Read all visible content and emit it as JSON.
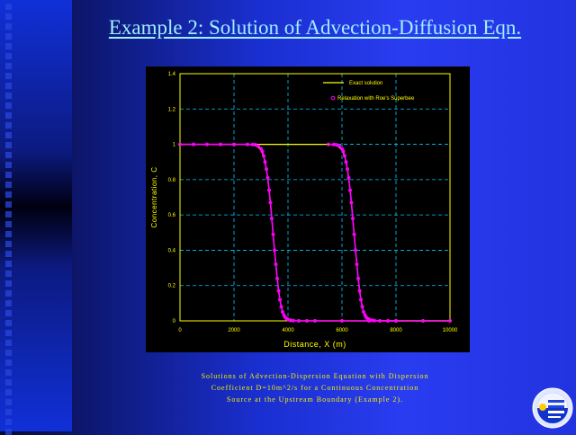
{
  "slide": {
    "title": "Example 2: Solution of Advection-Diffusion Eqn.",
    "caption_lines": [
      "Solutions of Advection-Dispersion Equation with Dispersion",
      "Coefficient D=10m^2/s for a Continuous Concentration",
      "Source at the Upstream Boundary (Example 2)."
    ]
  },
  "colors": {
    "exact": "#ffff00",
    "numeric": "#ff00ff",
    "grid": "#00c8ff",
    "frame": "#ffff00",
    "axis_text": "#ffff00"
  },
  "chart_data": {
    "type": "line",
    "xlabel": "Distance, X (m)",
    "ylabel": "Concentration, C",
    "xlim": [
      0,
      10000
    ],
    "ylim": [
      0,
      1.4
    ],
    "xticks": [
      0,
      2000,
      4000,
      6000,
      8000,
      10000
    ],
    "yticks": [
      0,
      0.2,
      0.4,
      0.6,
      0.8,
      1,
      1.2,
      1.4
    ],
    "xtick_labels": [
      "0",
      "2000",
      "4000",
      "6000",
      "8000",
      "10000"
    ],
    "ytick_labels": [
      "0",
      "0.2",
      "0.4",
      "0.6",
      "0.8",
      "1",
      "1.2",
      "1.4"
    ],
    "grid": true,
    "legend_position": "top-right",
    "series": [
      {
        "name": "Exact solution",
        "style": "line",
        "curves": [
          {
            "x": [
              0,
              2500,
              2800,
              3000,
              3100,
              3200,
              3300,
              3400,
              3500,
              3600,
              3700,
              3800,
              3900,
              4000,
              4200,
              4500,
              10000
            ],
            "y": [
              1,
              1,
              0.995,
              0.97,
              0.93,
              0.86,
              0.74,
              0.58,
              0.4,
              0.24,
              0.12,
              0.05,
              0.02,
              0.008,
              0.001,
              0,
              0
            ]
          },
          {
            "x": [
              0,
              5500,
              5800,
              6000,
              6100,
              6200,
              6300,
              6400,
              6500,
              6600,
              6700,
              6800,
              6900,
              7000,
              7200,
              7500,
              10000
            ],
            "y": [
              1,
              1,
              0.995,
              0.97,
              0.93,
              0.86,
              0.74,
              0.58,
              0.4,
              0.24,
              0.12,
              0.05,
              0.02,
              0.008,
              0.001,
              0,
              0
            ]
          }
        ]
      },
      {
        "name": "Relaxation with Roe's Superbee",
        "style": "markers",
        "curves": [
          {
            "x": [
              0,
              500,
              1000,
              1500,
              2000,
              2500,
              2700,
              2800,
              2900,
              3000,
              3050,
              3100,
              3150,
              3200,
              3250,
              3300,
              3350,
              3400,
              3450,
              3500,
              3550,
              3600,
              3650,
              3700,
              3750,
              3800,
              3850,
              3900,
              3950,
              4000,
              4100,
              4200,
              4400,
              4700,
              5000,
              6000,
              7000,
              8000,
              9000,
              10000
            ],
            "y": [
              1,
              1,
              1,
              1,
              1,
              1,
              0.999,
              0.997,
              0.99,
              0.975,
              0.96,
              0.935,
              0.9,
              0.86,
              0.81,
              0.74,
              0.67,
              0.58,
              0.49,
              0.4,
              0.32,
              0.24,
              0.17,
              0.12,
              0.08,
              0.05,
              0.032,
              0.02,
              0.012,
              0.008,
              0.003,
              0.001,
              0,
              0,
              0,
              0,
              0,
              0,
              0,
              0
            ]
          },
          {
            "x": [
              5500,
              5700,
              5800,
              5900,
              6000,
              6050,
              6100,
              6150,
              6200,
              6250,
              6300,
              6350,
              6400,
              6450,
              6500,
              6550,
              6600,
              6650,
              6700,
              6750,
              6800,
              6850,
              6900,
              6950,
              7000,
              7100,
              7200,
              7400,
              7700,
              8000
            ],
            "y": [
              1,
              0.999,
              0.997,
              0.99,
              0.975,
              0.96,
              0.935,
              0.9,
              0.86,
              0.81,
              0.74,
              0.67,
              0.58,
              0.49,
              0.4,
              0.32,
              0.24,
              0.17,
              0.12,
              0.08,
              0.05,
              0.032,
              0.02,
              0.012,
              0.008,
              0.003,
              0.001,
              0,
              0,
              0
            ]
          }
        ]
      }
    ]
  }
}
